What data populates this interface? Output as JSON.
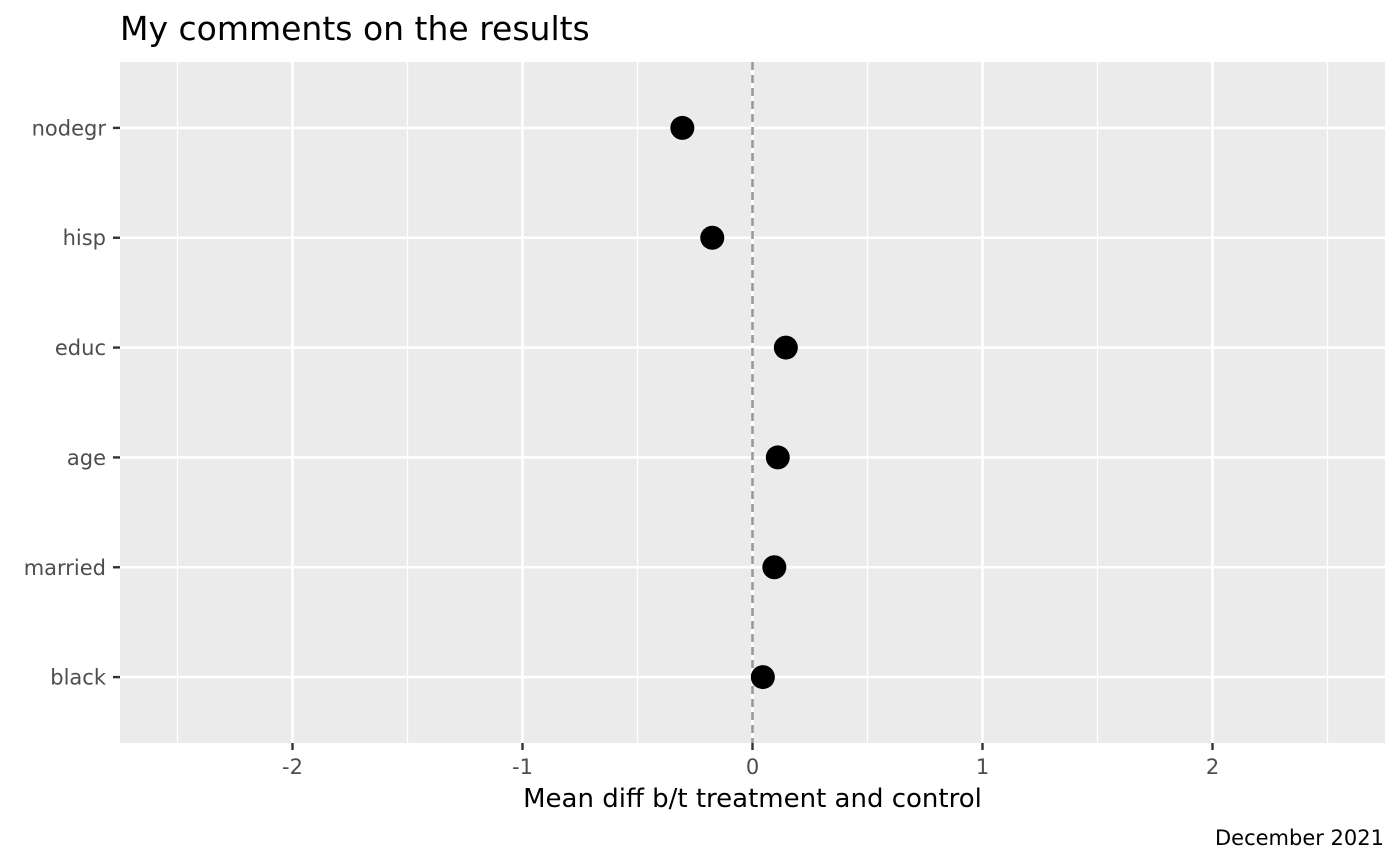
{
  "chart_data": {
    "type": "scatter",
    "title": "My comments on the results",
    "xlabel": "Mean diff b/t treatment and control",
    "ylabel": "",
    "caption": "December 2021",
    "xlim": [
      -2.75,
      2.75
    ],
    "x_ticks": [
      -2,
      -1,
      0,
      1,
      2
    ],
    "x_tick_labels": [
      "-2",
      "-1",
      "0",
      "1",
      "2"
    ],
    "x_minor_ticks": [
      -2.5,
      -1.5,
      -0.5,
      0.5,
      1.5,
      2.5
    ],
    "categories": [
      "nodegr",
      "hisp",
      "educ",
      "age",
      "married",
      "black"
    ],
    "values": [
      -0.305,
      -0.175,
      0.145,
      0.11,
      0.095,
      0.045
    ],
    "reference_line": {
      "x": 0,
      "style": "dashed",
      "color": "#999999"
    },
    "grid": true,
    "panel_background": "#ebebeb",
    "grid_color": "#ffffff",
    "point_color": "#000000"
  }
}
